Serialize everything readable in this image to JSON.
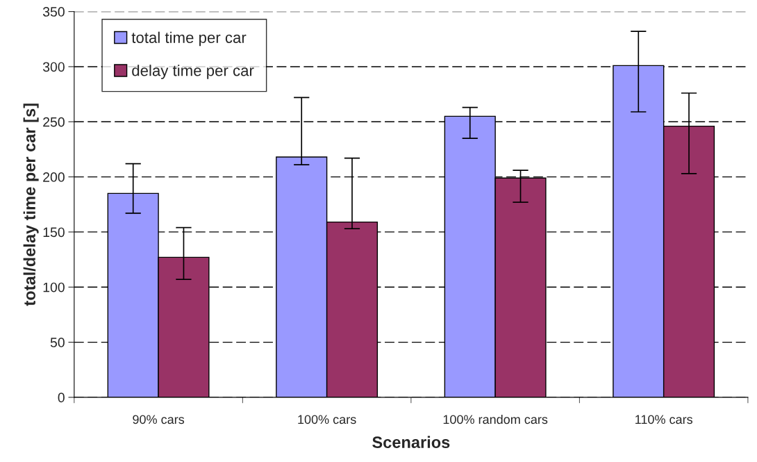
{
  "chart_data": {
    "type": "bar",
    "xlabel": "Scenarios",
    "ylabel": "total/delay time per car [s]",
    "categories": [
      "90% cars",
      "100% cars",
      "100% random cars",
      "110% cars"
    ],
    "series": [
      {
        "name": "total time per car",
        "color": "#9999ff",
        "values": [
          185,
          218,
          255,
          301
        ],
        "errors": [
          [
            167,
            212
          ],
          [
            211,
            272
          ],
          [
            235,
            263
          ],
          [
            259,
            332
          ]
        ]
      },
      {
        "name": "delay time per car",
        "color": "#993366",
        "values": [
          127,
          159,
          199,
          246
        ],
        "errors": [
          [
            107,
            154
          ],
          [
            153,
            217
          ],
          [
            177,
            206
          ],
          [
            203,
            276
          ]
        ]
      }
    ],
    "ylim": [
      0,
      350
    ],
    "yticks": [
      0,
      50,
      100,
      150,
      200,
      250,
      300,
      350
    ],
    "grid": "y",
    "legend": "top left"
  }
}
